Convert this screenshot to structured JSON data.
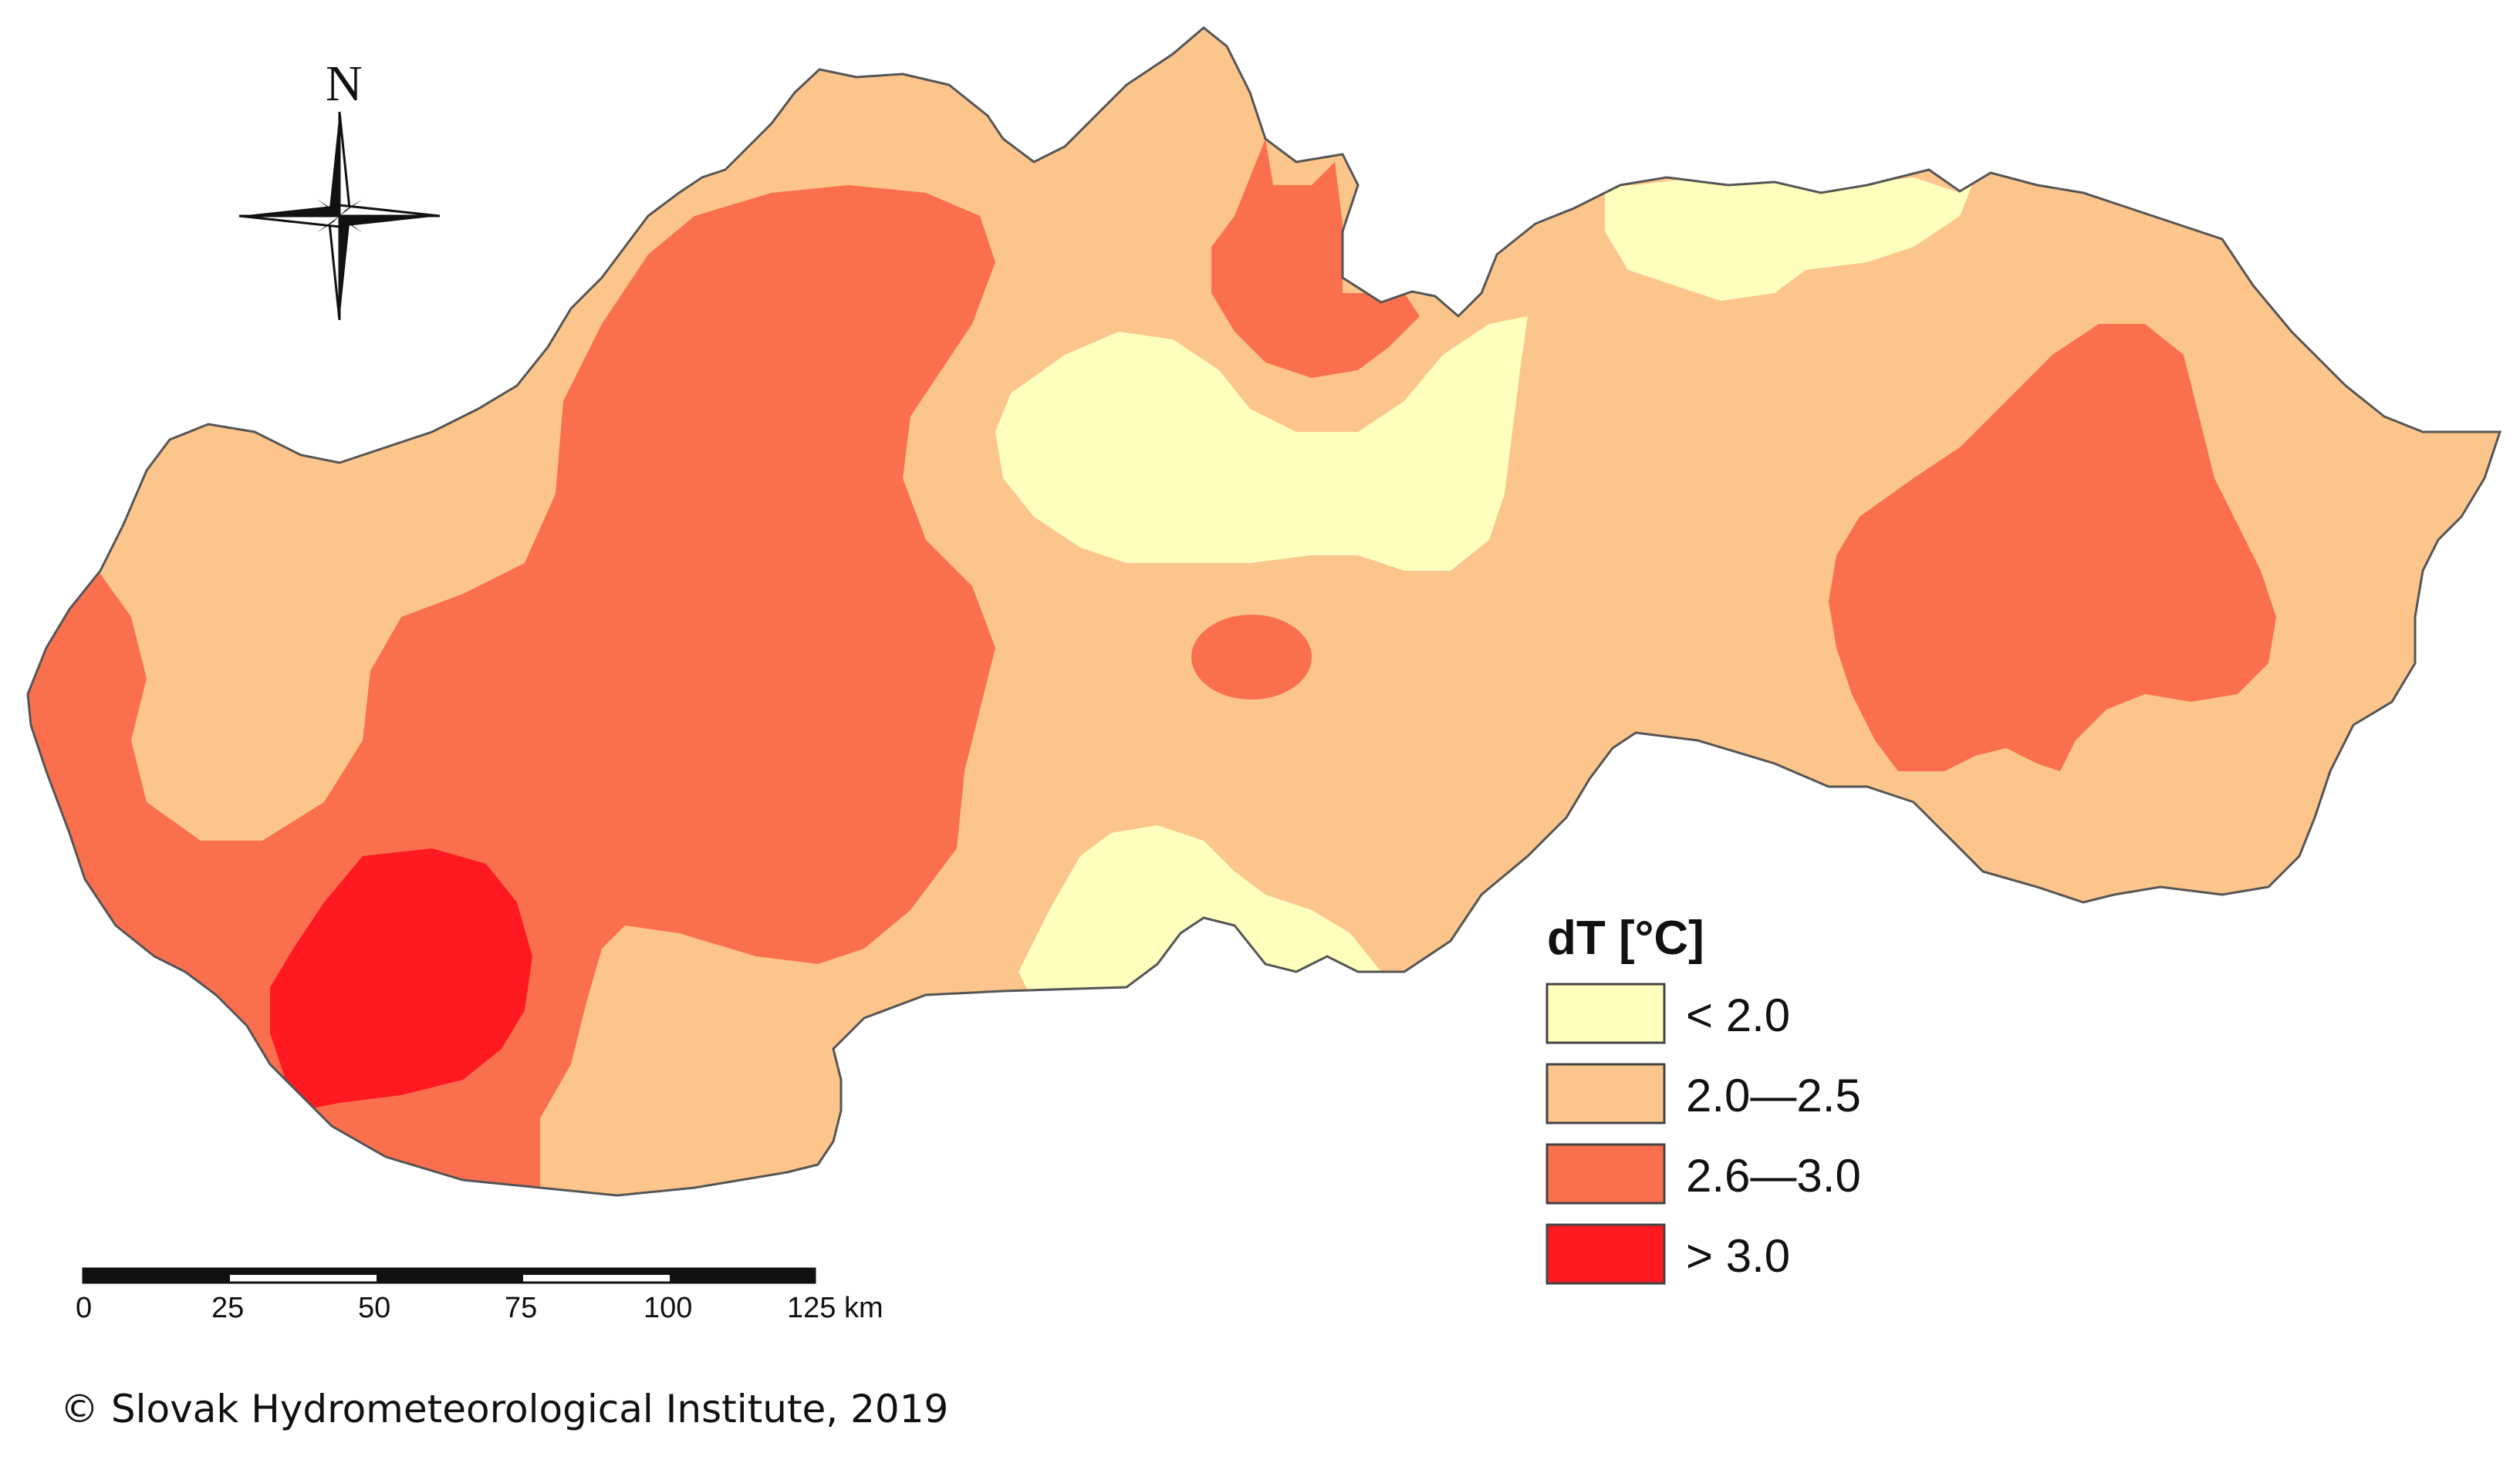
{
  "map": {
    "colors": {
      "lt_2_0": "#FFFFBE",
      "range_2_0_2_5": "#FCC58C",
      "range_2_6_3_0": "#FA704F",
      "gt_3_0": "#FF1A22",
      "boundary": "#555555"
    }
  },
  "north_arrow": {
    "label": "N"
  },
  "legend": {
    "title": "dT [°C]",
    "items": [
      {
        "label": "< 2.0",
        "color": "#FFFFBE"
      },
      {
        "label": "2.0—2.5",
        "color": "#FCC58C"
      },
      {
        "label": "2.6—3.0",
        "color": "#FA704F"
      },
      {
        "label": "> 3.0",
        "color": "#FF1A22"
      }
    ]
  },
  "scale_bar": {
    "ticks": [
      "0",
      "25",
      "50",
      "75",
      "100",
      "125 km"
    ]
  },
  "footer": {
    "copyright": "© Slovak Hydrometeorological Institute, 2019"
  }
}
